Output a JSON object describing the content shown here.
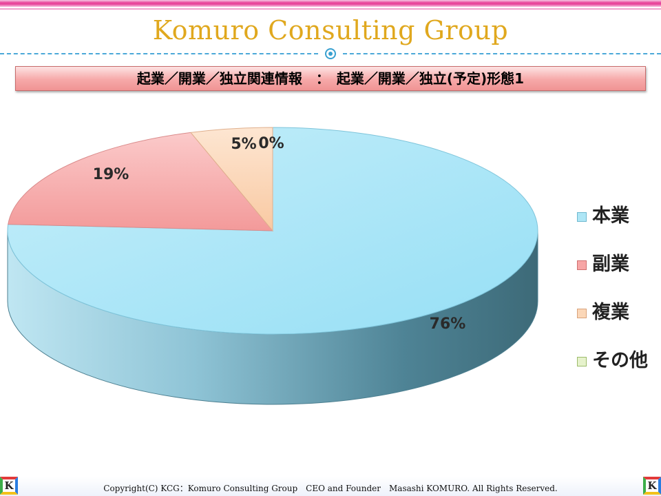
{
  "header": {
    "brand": "Komuro Consulting Group"
  },
  "banner": {
    "title": "起業／開業／独立関連情報　：　起業／開業／独立(予定)形態1"
  },
  "chart_data": {
    "type": "pie",
    "title": "",
    "three_d": true,
    "legend_placement": "right",
    "categories": [
      "本業",
      "副業",
      "複業",
      "その他"
    ],
    "values": [
      76,
      19,
      5,
      0
    ],
    "labels": [
      "76%",
      "19%",
      "5%",
      "0%"
    ],
    "colors": [
      "#aee6f6",
      "#f7a6a6",
      "#fbd7b8",
      "#cfe8a8"
    ]
  },
  "legend": {
    "items": [
      "本業",
      "副業",
      "複業",
      "その他"
    ]
  },
  "footer": {
    "copyright": "Copyright(C) KCG：Komuro Consulting Group　CEO and Founder　Masashi KOMURO. All Rights Reserved.",
    "logo_letter": "K"
  }
}
